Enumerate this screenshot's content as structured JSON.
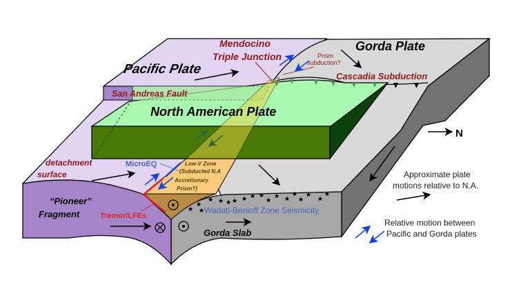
{
  "labels": {
    "pacific_plate": "Pacific Plate",
    "mendocino_1": "Mendocino",
    "mendocino_2": "Triple Junction",
    "gorda_plate": "Gorda Plate",
    "prism_1": "Prism",
    "prism_2": "subduction?",
    "cascadia": "Cascadia Subduction",
    "san_andreas": "San Andreas Fault",
    "north_american": "North American Plate",
    "north": "N",
    "detachment_1": "detachment",
    "detachment_2": "surface",
    "microeq": "MicroEQ",
    "lowv_1": "Low-V Zone",
    "lowv_2": "(Subducted N.A",
    "lowv_3": "Accretionary",
    "lowv_4": "Prism?)",
    "pioneer_1": "“Pioneer”",
    "pioneer_2": "Fragment",
    "tremor": "Tremor/LFEs",
    "wadati": "Wadati-Benioff Zone Seismicity",
    "gorda_slab": "Gorda Slab"
  },
  "legend": {
    "plate_motion_1": "Approximate plate",
    "plate_motion_2": "motions relative to N.A.",
    "relative_1": "Relative motion between",
    "relative_2": "Pacific and Gorda plates"
  },
  "colors": {
    "pacific": "#e2d5f1",
    "pioneer": "#a684c9",
    "na_top": "#a8f8b0",
    "na_front": "#4a7a06",
    "na_side": "#0a4208",
    "gorda_top": "#d8d8d8",
    "gorda_front": "#a8a8a8",
    "gorda_side": "#727272",
    "lowv": "#f8cc7c",
    "fault_label": "#8b1a1a",
    "blue_arrow": "#1040f0",
    "tremor": "#e0202a",
    "seismicity_text": "#4a62b8"
  }
}
